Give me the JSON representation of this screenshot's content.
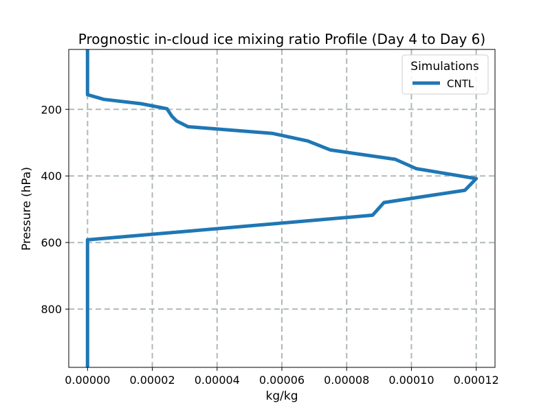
{
  "chart_data": {
    "type": "line",
    "title": "Prognostic in-cloud ice mixing ratio Profile (Day 4 to Day 6)",
    "xlabel": "kg/kg",
    "ylabel": "Pressure (hPa)",
    "xlim": [
      -5.8e-06,
      0.0001258
    ],
    "ylim": [
      975,
      20
    ],
    "y_inverted": true,
    "grid": true,
    "x_ticks": [
      0,
      2e-05,
      4e-05,
      6e-05,
      8e-05,
      0.0001,
      0.00012
    ],
    "x_tick_labels": [
      "0.00000",
      "0.00002",
      "0.00004",
      "0.00006",
      "0.00008",
      "0.00010",
      "0.00012"
    ],
    "y_ticks": [
      200,
      400,
      600,
      800
    ],
    "y_tick_labels": [
      "200",
      "400",
      "600",
      "800"
    ],
    "legend": {
      "title": "Simulations",
      "placement": "top-right"
    },
    "series": [
      {
        "name": "CNTL",
        "color": "#1f77b4",
        "points": [
          [
            0.0,
            20
          ],
          [
            0.0,
            50
          ],
          [
            0.0,
            100
          ],
          [
            0.0,
            156
          ],
          [
            5e-06,
            170
          ],
          [
            1.65e-05,
            183
          ],
          [
            2.45e-05,
            198
          ],
          [
            2.6e-05,
            220
          ],
          [
            2.75e-05,
            235
          ],
          [
            3.1e-05,
            252
          ],
          [
            5.7e-05,
            272
          ],
          [
            6.8e-05,
            295
          ],
          [
            7.5e-05,
            322
          ],
          [
            9.5e-05,
            350
          ],
          [
            0.0001015,
            378
          ],
          [
            0.000112,
            395
          ],
          [
            0.00012,
            408
          ],
          [
            0.0001165,
            443
          ],
          [
            9.15e-05,
            480
          ],
          [
            8.8e-05,
            518
          ],
          [
            0.0,
            592
          ],
          [
            0.0,
            700
          ],
          [
            0.0,
            850
          ],
          [
            0.0,
            975
          ]
        ]
      }
    ]
  }
}
